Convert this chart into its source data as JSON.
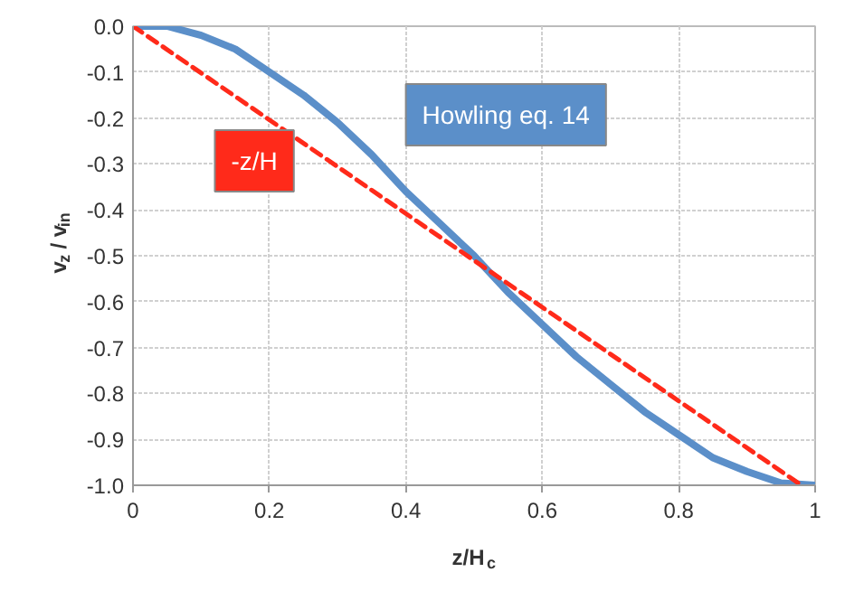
{
  "chart_data": {
    "type": "line",
    "xlabel": "z/H$_{c}$",
    "ylabel": "v$_{z}$ / v$_{in}$",
    "xlim": [
      0,
      1
    ],
    "ylim": [
      -1.0,
      0.0
    ],
    "xticks": [
      0,
      0.2,
      0.4,
      0.6,
      0.8,
      1
    ],
    "yticks": [
      {
        "value": -1.0,
        "label": "-1.0"
      },
      {
        "value": -0.9,
        "label": "-0.9"
      },
      {
        "value": -0.8,
        "label": "-0.8"
      },
      {
        "value": -0.7,
        "label": "-0.7"
      },
      {
        "value": -0.6,
        "label": "-0.6"
      },
      {
        "value": -0.5,
        "label": "-0.5"
      },
      {
        "value": -0.4,
        "label": "-0.4"
      },
      {
        "value": -0.3,
        "label": "-0.3"
      },
      {
        "value": -0.2,
        "label": "-0.2"
      },
      {
        "value": -0.1,
        "label": "-0.1"
      },
      {
        "value": 0.0,
        "label": "0.0"
      }
    ],
    "grid": true,
    "legend": false,
    "series": [
      {
        "name": "Howling eq. 14",
        "color": "#5b8fc9",
        "line_style": "solid",
        "x": [
          0,
          0.05,
          0.1,
          0.15,
          0.2,
          0.25,
          0.3,
          0.35,
          0.4,
          0.45,
          0.5,
          0.55,
          0.6,
          0.65,
          0.7,
          0.75,
          0.8,
          0.85,
          0.9,
          0.95,
          1
        ],
        "values": [
          0,
          0,
          -0.02,
          -0.05,
          -0.1,
          -0.15,
          -0.21,
          -0.28,
          -0.36,
          -0.43,
          -0.5,
          -0.58,
          -0.65,
          -0.72,
          -0.78,
          -0.84,
          -0.89,
          -0.94,
          -0.97,
          -0.995,
          -1
        ]
      },
      {
        "name": "-z/H",
        "color": "#ff2a1a",
        "line_style": "dashed",
        "x": [
          0,
          0.98
        ],
        "values": [
          0,
          -1
        ]
      }
    ]
  }
}
